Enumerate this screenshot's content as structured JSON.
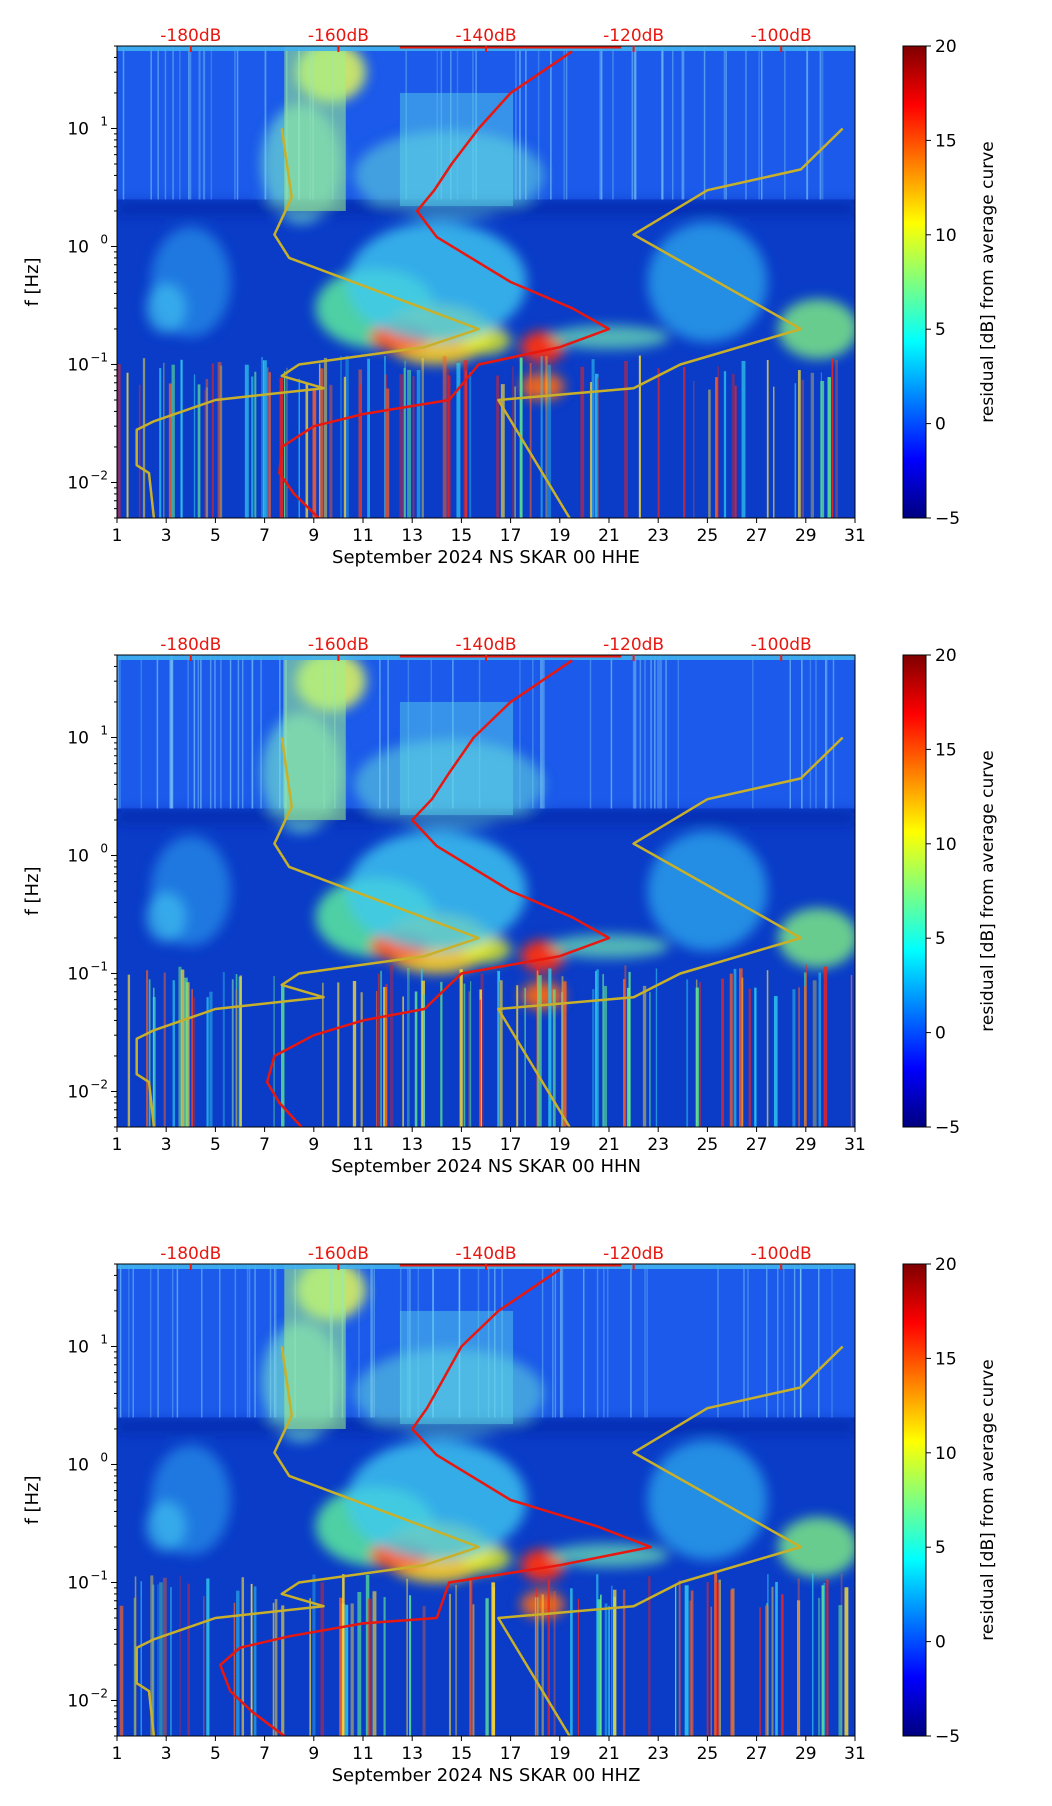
{
  "colors": {
    "power_curve": "#e8170f",
    "noise_model": "#c8b02a",
    "top_axis_labels": "#e8170f",
    "colormap": [
      "#00007f",
      "#0000ff",
      "#007fff",
      "#00ffff",
      "#7fff7f",
      "#ffff00",
      "#ff7f00",
      "#ff0000",
      "#7f0000"
    ]
  },
  "chart_data": [
    {
      "type": "heatmap",
      "xlabel": "September 2024 NS SKAR 00 HHE",
      "ylabel": "f [Hz]",
      "x_ticks": [
        "1",
        "3",
        "5",
        "7",
        "9",
        "11",
        "13",
        "15",
        "17",
        "19",
        "21",
        "23",
        "25",
        "27",
        "29",
        "31"
      ],
      "xlim": [
        1,
        31
      ],
      "y_scale": "log",
      "ylim": [
        0.005,
        50
      ],
      "y_ticks": [
        {
          "value": 10,
          "base": "10",
          "exp": "1"
        },
        {
          "value": 1,
          "base": "10",
          "exp": "0"
        },
        {
          "value": 0.1,
          "base": "10",
          "exp": "−1"
        },
        {
          "value": 0.01,
          "base": "10",
          "exp": "−2"
        }
      ],
      "top_axis": {
        "labels": [
          "-180dB",
          "-160dB",
          "-140dB",
          "-120dB",
          "-100dB"
        ],
        "positions_day": [
          4,
          10,
          16,
          22,
          28
        ]
      },
      "colorbar": {
        "label": "residual [dB] from average curve",
        "ticks": [
          "20",
          "15",
          "10",
          "5",
          "0",
          "−5"
        ],
        "range": [
          -5,
          20
        ]
      },
      "noise_model_low": [
        [
          7.7,
          10
        ],
        [
          8.1,
          2.6
        ],
        [
          7.4,
          1.26
        ],
        [
          8,
          0.8
        ],
        [
          15.7,
          0.2
        ],
        [
          13.5,
          0.14
        ],
        [
          8.4,
          0.1
        ],
        [
          7.7,
          0.08
        ],
        [
          9.4,
          0.063
        ],
        [
          5,
          0.05
        ],
        [
          2.5,
          0.033
        ],
        [
          1.8,
          0.028
        ],
        [
          1.8,
          0.014
        ],
        [
          2.3,
          0.012
        ],
        [
          2.5,
          0.005
        ]
      ],
      "noise_model_high": [
        [
          30.5,
          10
        ],
        [
          28.8,
          4.5
        ],
        [
          25,
          3
        ],
        [
          22,
          1.26
        ],
        [
          28.8,
          0.2
        ],
        [
          23.9,
          0.1
        ],
        [
          22,
          0.063
        ],
        [
          16.5,
          0.05
        ],
        [
          19.4,
          0.005
        ]
      ],
      "power_curve": [
        [
          9.2,
          0.005
        ],
        [
          8.2,
          0.008
        ],
        [
          7.6,
          0.012
        ],
        [
          7.7,
          0.02
        ],
        [
          9,
          0.03
        ],
        [
          11,
          0.038
        ],
        [
          14.5,
          0.05
        ],
        [
          15.7,
          0.1
        ],
        [
          19,
          0.14
        ],
        [
          21,
          0.2
        ],
        [
          19.5,
          0.3
        ],
        [
          17,
          0.5
        ],
        [
          14,
          1.2
        ],
        [
          13.2,
          2
        ],
        [
          13.9,
          3
        ],
        [
          14.6,
          5
        ],
        [
          15.7,
          10
        ],
        [
          17,
          20
        ],
        [
          19.5,
          45
        ]
      ]
    },
    {
      "type": "heatmap",
      "xlabel": "September 2024 NS SKAR 00 HHN",
      "ylabel": "f [Hz]",
      "x_ticks": [
        "1",
        "3",
        "5",
        "7",
        "9",
        "11",
        "13",
        "15",
        "17",
        "19",
        "21",
        "23",
        "25",
        "27",
        "29",
        "31"
      ],
      "xlim": [
        1,
        31
      ],
      "y_scale": "log",
      "ylim": [
        0.005,
        50
      ],
      "y_ticks": [
        {
          "value": 10,
          "base": "10",
          "exp": "1"
        },
        {
          "value": 1,
          "base": "10",
          "exp": "0"
        },
        {
          "value": 0.1,
          "base": "10",
          "exp": "−1"
        },
        {
          "value": 0.01,
          "base": "10",
          "exp": "−2"
        }
      ],
      "top_axis": {
        "labels": [
          "-180dB",
          "-160dB",
          "-140dB",
          "-120dB",
          "-100dB"
        ],
        "positions_day": [
          4,
          10,
          16,
          22,
          28
        ]
      },
      "colorbar": {
        "label": "residual [dB] from average curve",
        "ticks": [
          "20",
          "15",
          "10",
          "5",
          "0",
          "−5"
        ],
        "range": [
          -5,
          20
        ]
      },
      "noise_model_low": [
        [
          7.7,
          10
        ],
        [
          8.1,
          2.6
        ],
        [
          7.4,
          1.26
        ],
        [
          8,
          0.8
        ],
        [
          15.7,
          0.2
        ],
        [
          13.5,
          0.14
        ],
        [
          8.4,
          0.1
        ],
        [
          7.7,
          0.08
        ],
        [
          9.4,
          0.063
        ],
        [
          5,
          0.05
        ],
        [
          2.5,
          0.033
        ],
        [
          1.8,
          0.028
        ],
        [
          1.8,
          0.014
        ],
        [
          2.3,
          0.012
        ],
        [
          2.5,
          0.005
        ]
      ],
      "noise_model_high": [
        [
          30.5,
          10
        ],
        [
          28.8,
          4.5
        ],
        [
          25,
          3
        ],
        [
          22,
          1.26
        ],
        [
          28.8,
          0.2
        ],
        [
          23.9,
          0.1
        ],
        [
          22,
          0.063
        ],
        [
          16.5,
          0.05
        ],
        [
          19.4,
          0.005
        ]
      ],
      "power_curve": [
        [
          8.5,
          0.005
        ],
        [
          7.6,
          0.008
        ],
        [
          7.1,
          0.012
        ],
        [
          7.4,
          0.02
        ],
        [
          9,
          0.03
        ],
        [
          11,
          0.04
        ],
        [
          13.5,
          0.05
        ],
        [
          15,
          0.1
        ],
        [
          19,
          0.14
        ],
        [
          21,
          0.2
        ],
        [
          19.5,
          0.3
        ],
        [
          17,
          0.5
        ],
        [
          14,
          1.2
        ],
        [
          13,
          2
        ],
        [
          13.8,
          3
        ],
        [
          14.5,
          5
        ],
        [
          15.5,
          10
        ],
        [
          17,
          20
        ],
        [
          19.5,
          45
        ]
      ]
    },
    {
      "type": "heatmap",
      "xlabel": "September 2024 NS SKAR 00 HHZ",
      "ylabel": "f [Hz]",
      "x_ticks": [
        "1",
        "3",
        "5",
        "7",
        "9",
        "11",
        "13",
        "15",
        "17",
        "19",
        "21",
        "23",
        "25",
        "27",
        "29",
        "31"
      ],
      "xlim": [
        1,
        31
      ],
      "y_scale": "log",
      "ylim": [
        0.005,
        50
      ],
      "y_ticks": [
        {
          "value": 10,
          "base": "10",
          "exp": "1"
        },
        {
          "value": 1,
          "base": "10",
          "exp": "0"
        },
        {
          "value": 0.1,
          "base": "10",
          "exp": "−1"
        },
        {
          "value": 0.01,
          "base": "10",
          "exp": "−2"
        }
      ],
      "top_axis": {
        "labels": [
          "-180dB",
          "-160dB",
          "-140dB",
          "-120dB",
          "-100dB"
        ],
        "positions_day": [
          4,
          10,
          16,
          22,
          28
        ]
      },
      "colorbar": {
        "label": "residual [dB] from average curve",
        "ticks": [
          "20",
          "15",
          "10",
          "5",
          "0",
          "−5"
        ],
        "range": [
          -5,
          20
        ]
      },
      "noise_model_low": [
        [
          7.7,
          10
        ],
        [
          8.1,
          2.6
        ],
        [
          7.4,
          1.26
        ],
        [
          8,
          0.8
        ],
        [
          15.7,
          0.2
        ],
        [
          13.5,
          0.14
        ],
        [
          8.4,
          0.1
        ],
        [
          7.7,
          0.08
        ],
        [
          9.4,
          0.063
        ],
        [
          5,
          0.05
        ],
        [
          2.5,
          0.033
        ],
        [
          1.8,
          0.028
        ],
        [
          1.8,
          0.014
        ],
        [
          2.3,
          0.012
        ],
        [
          2.5,
          0.005
        ]
      ],
      "noise_model_high": [
        [
          30.5,
          10
        ],
        [
          28.8,
          4.5
        ],
        [
          25,
          3
        ],
        [
          22,
          1.26
        ],
        [
          28.8,
          0.2
        ],
        [
          23.9,
          0.1
        ],
        [
          22,
          0.063
        ],
        [
          16.5,
          0.05
        ],
        [
          19.4,
          0.005
        ]
      ],
      "power_curve": [
        [
          7.8,
          0.005
        ],
        [
          6.5,
          0.008
        ],
        [
          5.6,
          0.012
        ],
        [
          5.2,
          0.02
        ],
        [
          6,
          0.028
        ],
        [
          8,
          0.035
        ],
        [
          11,
          0.045
        ],
        [
          14,
          0.05
        ],
        [
          14.5,
          0.1
        ],
        [
          19,
          0.14
        ],
        [
          22.7,
          0.2
        ],
        [
          20.5,
          0.3
        ],
        [
          17,
          0.5
        ],
        [
          14,
          1.2
        ],
        [
          13,
          2
        ],
        [
          13.6,
          3
        ],
        [
          14.2,
          5
        ],
        [
          15,
          10
        ],
        [
          16.5,
          20
        ],
        [
          19,
          45
        ]
      ]
    }
  ]
}
